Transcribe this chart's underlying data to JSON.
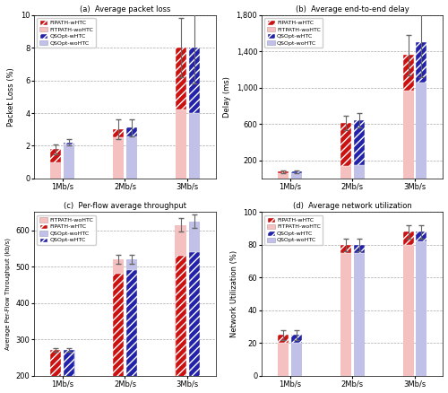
{
  "groups": [
    "1Mb/s",
    "2Mb/s",
    "3Mb/s"
  ],
  "a_fipath_wHTC": [
    1.8,
    3.0,
    8.0
  ],
  "a_fitpath_woHTC": [
    1.0,
    2.5,
    4.2
  ],
  "a_qsopt_wHTC": [
    2.2,
    3.1,
    8.0
  ],
  "a_qsopt_woHTC": [
    2.1,
    2.55,
    4.0
  ],
  "a_fipath_wHTC_err": [
    0.3,
    0.6,
    1.8
  ],
  "a_qsopt_wHTC_err": [
    0.2,
    0.5,
    2.2
  ],
  "b_fipath_wHTC": [
    75,
    615,
    1360
  ],
  "b_fitpath_woHTC": [
    55,
    140,
    970
  ],
  "b_qsopt_wHTC": [
    75,
    645,
    1500
  ],
  "b_qsopt_woHTC": [
    55,
    150,
    1060
  ],
  "b_fipath_wHTC_err": [
    15,
    80,
    220
  ],
  "b_qsopt_wHTC_err": [
    15,
    80,
    380
  ],
  "c_fipath_wHTC": [
    270,
    480,
    530
  ],
  "c_fitpath_woHTC": [
    270,
    520,
    615
  ],
  "c_qsopt_wHTC": [
    270,
    490,
    540
  ],
  "c_qsopt_woHTC": [
    270,
    520,
    625
  ],
  "c_fipath_wHTC_err": [
    5,
    12,
    18
  ],
  "c_fitpath_woHTC_err": [
    5,
    12,
    18
  ],
  "c_qsopt_wHTC_err": [
    5,
    12,
    18
  ],
  "c_qsopt_woHTC_err": [
    5,
    12,
    18
  ],
  "d_fipath_wHTC": [
    25,
    80,
    88
  ],
  "d_fitpath_woHTC": [
    20,
    75,
    80
  ],
  "d_qsopt_wHTC": [
    25,
    80,
    88
  ],
  "d_qsopt_woHTC": [
    20,
    75,
    82
  ],
  "d_fipath_wHTC_err": [
    3,
    4,
    4
  ],
  "d_qsopt_wHTC_err": [
    3,
    4,
    4
  ],
  "color_fipath_wHTC": "#cc1111",
  "color_fitpath_woHTC": "#f5c0c0",
  "color_qsopt_wHTC": "#2222aa",
  "color_qsopt_woHTC": "#c0c0e8"
}
